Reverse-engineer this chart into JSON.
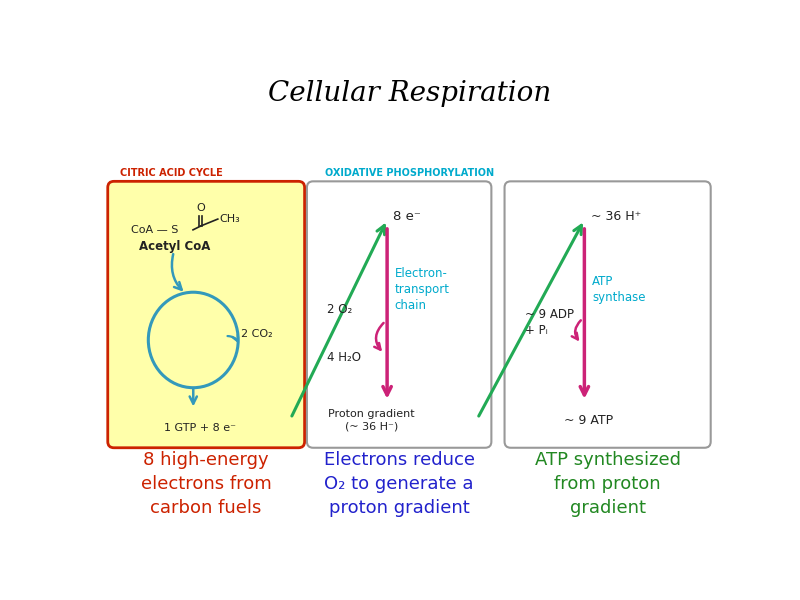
{
  "title": "Cellular Respiration",
  "title_fontsize": 20,
  "title_color": "#000000",
  "bg_color": "#ffffff",
  "panel1_bg": "#ffffaa",
  "panel1_border": "#cc2200",
  "panel1_label": "CITRIC ACID CYCLE",
  "panel1_label_color": "#cc2200",
  "panel2_bg": "#ffffff",
  "panel2_border": "#999999",
  "panel2_label": "OXIDATIVE PHOSPHORYLATION",
  "panel2_label_color": "#00aacc",
  "panel3_bg": "#ffffff",
  "panel3_border": "#999999",
  "bottom_text1": "8 high-energy\nelectrons from\ncarbon fuels",
  "bottom_text1_color": "#cc2200",
  "bottom_text2": "Electrons reduce\nO₂ to generate a\nproton gradient",
  "bottom_text2_color": "#2222cc",
  "bottom_text3": "ATP synthesized\nfrom proton\ngradient",
  "bottom_text3_color": "#228822",
  "cyan_color": "#3399bb",
  "magenta_color": "#cc2277",
  "green_color": "#22aa55",
  "dark_color": "#222222",
  "label_cyan": "#00aacc"
}
